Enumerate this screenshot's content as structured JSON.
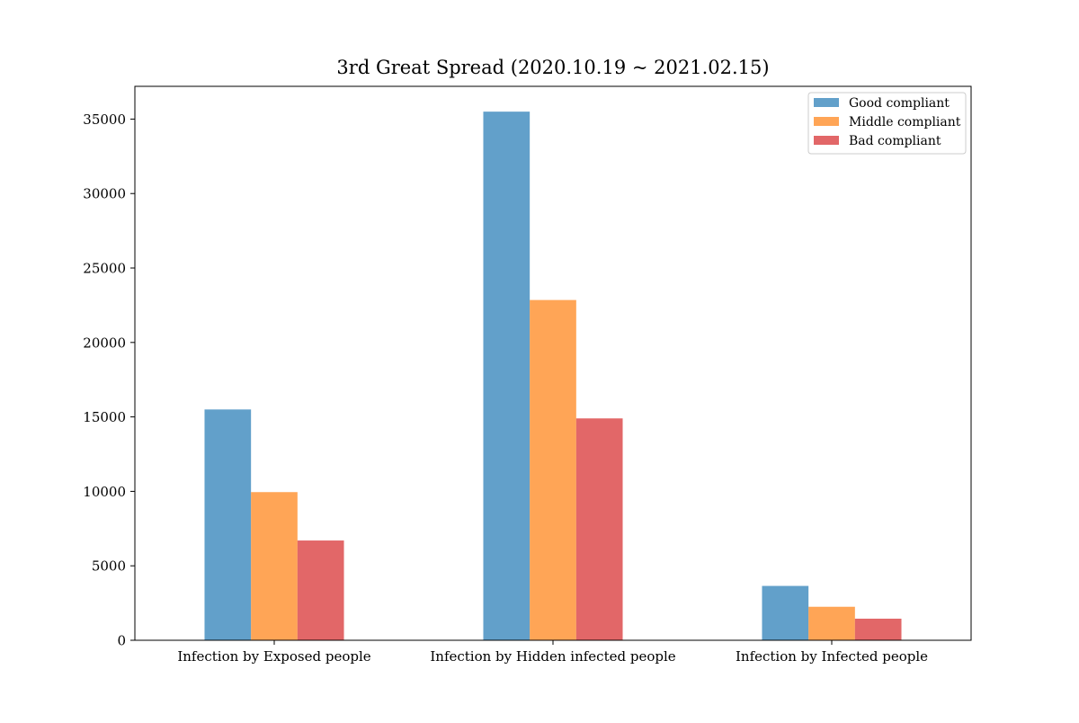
{
  "chart_data": {
    "type": "bar",
    "title": "3rd Great Spread (2020.10.19 ~ 2021.02.15)",
    "xlabel": "",
    "ylabel": "",
    "categories": [
      "Infection by Exposed people",
      "Infection by Hidden infected people",
      "Infection by Infected people"
    ],
    "series": [
      {
        "name": "Good compliant",
        "color": "#1f77b4",
        "values": [
          15500,
          35500,
          3650
        ]
      },
      {
        "name": "Middle compliant",
        "color": "#ff7f0e",
        "values": [
          9950,
          22850,
          2250
        ]
      },
      {
        "name": "Bad compliant",
        "color": "#d62728",
        "values": [
          6700,
          14900,
          1450
        ]
      }
    ],
    "ylim": [
      0,
      37200
    ],
    "yticks": [
      0,
      5000,
      10000,
      15000,
      20000,
      25000,
      30000,
      35000
    ],
    "bar_alpha": 0.7,
    "grid": false,
    "legend": "top-right"
  }
}
